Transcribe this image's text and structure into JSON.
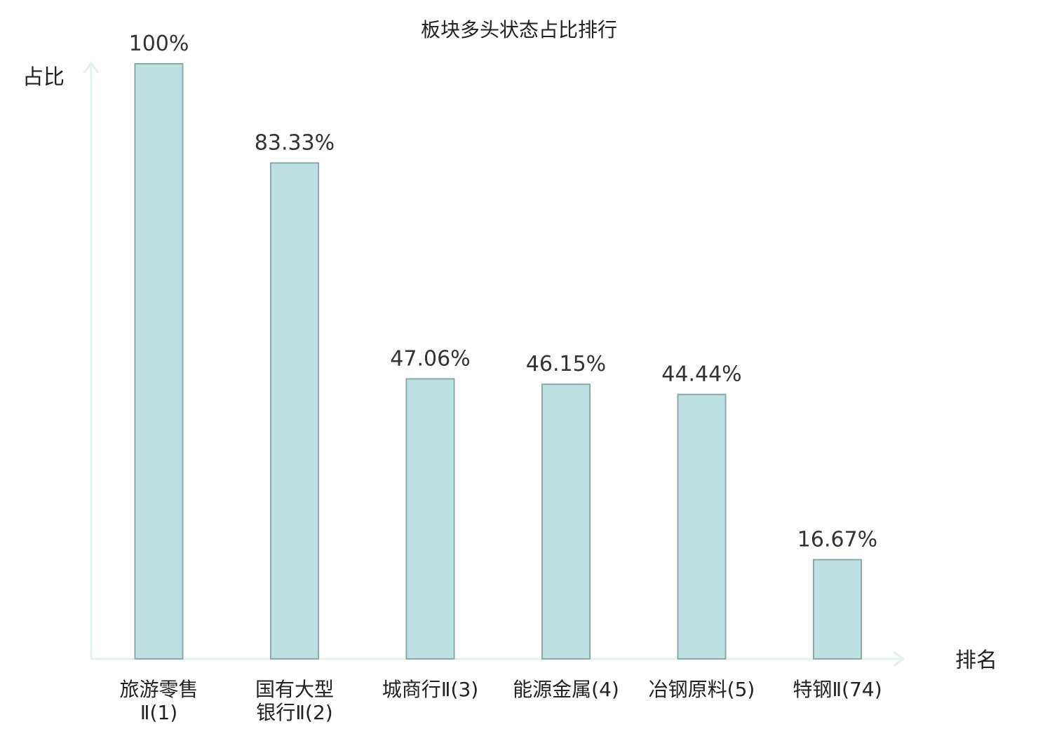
{
  "chart_data": {
    "type": "bar",
    "title": "板块多头状态占比排行",
    "ylabel": "占比",
    "xlabel": "排名",
    "ylim": [
      0,
      100
    ],
    "categories": [
      [
        "旅游零售",
        "Ⅱ(1)"
      ],
      [
        "国有大型",
        "银行Ⅱ(2)"
      ],
      [
        "城商行Ⅱ(3)"
      ],
      [
        "能源金属(4)"
      ],
      [
        "冶钢原料(5)"
      ],
      [
        "特钢Ⅱ(74)"
      ]
    ],
    "values": [
      100,
      83.33,
      47.06,
      46.15,
      44.44,
      16.67
    ],
    "value_labels": [
      "100%",
      "83.33%",
      "47.06%",
      "46.15%",
      "44.44%",
      "16.67%"
    ],
    "highlight_index": 5,
    "colors": {
      "bar_fill": "#bde1e3",
      "bar_stroke": "#8aa9ab",
      "axis": "#e0f3f0",
      "text": "#222222",
      "value_text": "#333333",
      "highlight_text": "#e8141c"
    }
  }
}
